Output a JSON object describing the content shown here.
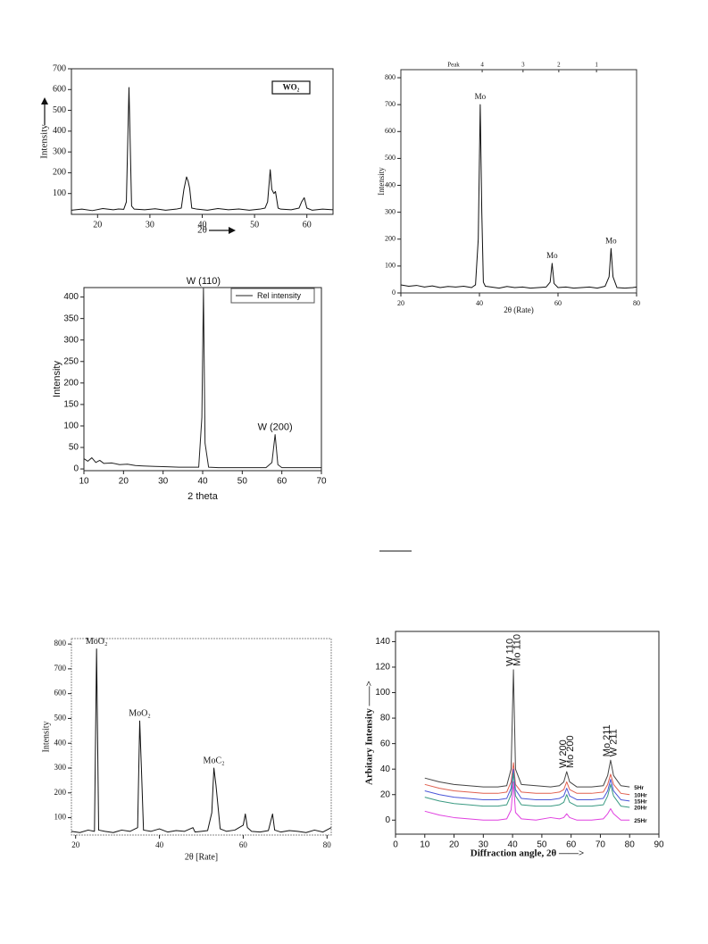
{
  "chart_data": [
    {
      "type": "line",
      "xlabel": "2θ",
      "ylabel": "Intensity",
      "xlim": [
        15,
        65
      ],
      "ylim": [
        0,
        700
      ],
      "xticks": [
        20,
        30,
        40,
        50,
        60
      ],
      "yticks": [
        100,
        200,
        300,
        400,
        500,
        600,
        700
      ],
      "x": [
        15,
        17,
        19,
        21,
        23,
        24,
        25,
        25.5,
        26,
        26.5,
        27,
        29,
        31,
        33,
        35,
        36,
        36.5,
        37,
        37.3,
        37.6,
        38,
        39,
        41,
        43,
        45,
        47,
        49,
        51,
        52,
        52.5,
        53,
        53.3,
        53.7,
        54,
        54.5,
        55,
        57,
        58.5,
        59,
        59.5,
        60,
        61,
        63,
        65
      ],
      "series": [
        {
          "name": "WO₂",
          "color": "#111111",
          "values": [
            20,
            25,
            18,
            28,
            22,
            26,
            24,
            60,
            610,
            40,
            25,
            22,
            27,
            20,
            25,
            30,
            120,
            180,
            160,
            125,
            30,
            25,
            20,
            28,
            22,
            26,
            20,
            25,
            30,
            60,
            215,
            120,
            100,
            110,
            30,
            25,
            22,
            30,
            60,
            80,
            30,
            20,
            25,
            22
          ]
        }
      ]
    },
    {
      "type": "line",
      "xlabel": "2θ (Rate)",
      "ylabel": "Intensity",
      "top_title": "Peak",
      "top_ticks": [
        {
          "value": 40.7,
          "label": "4"
        },
        {
          "value": 51.1,
          "label": "3"
        },
        {
          "value": 60.2,
          "label": "2"
        },
        {
          "value": 69.8,
          "label": "1"
        }
      ],
      "xlim": [
        20,
        80
      ],
      "ylim": [
        0,
        830
      ],
      "xticks": [
        20,
        40,
        60,
        80
      ],
      "yticks": [
        0,
        100,
        200,
        300,
        400,
        500,
        600,
        700,
        800
      ],
      "x": [
        20,
        22,
        24,
        26,
        28,
        30,
        32,
        34,
        36,
        38,
        39,
        39.7,
        40.2,
        40.6,
        41,
        41.5,
        43,
        45,
        47,
        49,
        51,
        53,
        55,
        57,
        58,
        58.5,
        59,
        60,
        62,
        64,
        66,
        68,
        70,
        72,
        73,
        73.5,
        74,
        75,
        77,
        79,
        80
      ],
      "series": [
        {
          "color": "#111111",
          "values": [
            30,
            25,
            28,
            22,
            26,
            20,
            24,
            22,
            25,
            20,
            30,
            200,
            700,
            300,
            40,
            25,
            22,
            18,
            24,
            20,
            22,
            18,
            20,
            22,
            40,
            110,
            35,
            20,
            22,
            18,
            20,
            22,
            18,
            25,
            60,
            165,
            60,
            20,
            18,
            20,
            22
          ]
        }
      ],
      "annotations": [
        {
          "text": "Mo",
          "x": 40.2,
          "y": 700
        },
        {
          "text": "Mo",
          "x": 58.5,
          "y": 110
        },
        {
          "text": "Mo",
          "x": 73.5,
          "y": 165
        }
      ]
    },
    {
      "type": "line",
      "xlabel": "2 theta",
      "ylabel": "Intensity",
      "xlim": [
        10,
        70
      ],
      "ylim": [
        -4,
        422
      ],
      "xticks": [
        10,
        20,
        30,
        40,
        50,
        60,
        70
      ],
      "yticks": [
        0,
        50,
        100,
        150,
        200,
        250,
        300,
        350,
        400
      ],
      "x": [
        10,
        11,
        12,
        13,
        14,
        15,
        17,
        19,
        21,
        23,
        25,
        28,
        31,
        34,
        37,
        39,
        39.8,
        40.2,
        40.6,
        41.5,
        44,
        47,
        50,
        53,
        56,
        57.5,
        58.3,
        59,
        60,
        63,
        66,
        70
      ],
      "series": [
        {
          "name": "Rel intensity",
          "color": "#222222",
          "values": [
            24,
            18,
            26,
            15,
            20,
            13,
            14,
            10,
            11,
            8,
            7,
            6,
            5,
            4,
            4,
            4,
            120,
            420,
            60,
            4,
            3,
            3,
            3,
            3,
            3,
            15,
            80,
            10,
            3,
            3,
            3,
            3
          ]
        }
      ],
      "annotations": [
        {
          "text": "W (110)",
          "x": 40.2,
          "y": 420
        },
        {
          "text": "W (200)",
          "x": 58.3,
          "y": 80
        }
      ]
    },
    {
      "type": "line",
      "xlabel": "2θ [Rate]",
      "ylabel": "Intensity",
      "xlim": [
        19,
        81
      ],
      "ylim": [
        30,
        822
      ],
      "xticks": [
        20,
        40,
        60,
        80
      ],
      "yticks": [
        100,
        200,
        300,
        400,
        500,
        600,
        700,
        800
      ],
      "x": [
        19,
        21,
        23,
        24.5,
        25,
        25.5,
        27,
        29,
        31,
        33,
        34.8,
        35.3,
        35.7,
        36.2,
        38,
        40,
        42,
        44,
        46,
        48,
        48.5,
        50,
        51.5,
        52.5,
        53,
        53.5,
        54.5,
        56,
        58,
        60,
        60.5,
        61,
        62,
        64,
        66,
        67,
        67.5,
        69,
        71,
        73,
        75,
        77,
        79,
        81
      ],
      "series": [
        {
          "color": "#111111",
          "values": [
            45,
            40,
            50,
            45,
            780,
            50,
            45,
            40,
            50,
            45,
            60,
            490,
            300,
            50,
            45,
            55,
            42,
            48,
            45,
            60,
            42,
            45,
            48,
            120,
            300,
            230,
            55,
            45,
            50,
            70,
            115,
            60,
            45,
            42,
            48,
            115,
            50,
            42,
            48,
            45,
            40,
            50,
            42,
            60
          ]
        }
      ],
      "annotations": [
        {
          "text": "MoO₂",
          "x": 25,
          "y": 780
        },
        {
          "text": "MoO₂",
          "x": 35.3,
          "y": 490
        },
        {
          "text": "MoC₂",
          "x": 53,
          "y": 300
        }
      ]
    },
    {
      "type": "line",
      "xlabel": "Diffraction angle,  2θ ——>",
      "ylabel": "Arbitary Intensity ——>",
      "xlim": [
        0,
        90
      ],
      "ylim": [
        -11,
        148
      ],
      "xticks": [
        0,
        10,
        20,
        30,
        40,
        50,
        60,
        70,
        80,
        90
      ],
      "yticks": [
        0,
        20,
        40,
        60,
        80,
        100,
        120,
        140
      ],
      "annotation_rotation": -90,
      "x": [
        10,
        15,
        20,
        25,
        30,
        35,
        38,
        39.5,
        40.3,
        41,
        43,
        48,
        53,
        56,
        57.5,
        58.5,
        59.5,
        62,
        67,
        71,
        72.5,
        73.5,
        74.5,
        77,
        80
      ],
      "series": [
        {
          "name": "5Hr",
          "color": "#444444",
          "values": [
            33,
            30,
            28,
            27,
            26,
            26,
            27,
            40,
            118,
            40,
            28,
            27,
            26,
            27,
            30,
            38,
            30,
            26,
            26,
            27,
            35,
            47,
            35,
            27,
            26
          ]
        },
        {
          "name": "10Hr",
          "color": "#e0604f",
          "values": [
            28,
            25,
            23,
            22,
            21,
            21,
            22,
            30,
            45,
            28,
            22,
            21,
            21,
            22,
            24,
            30,
            24,
            21,
            21,
            22,
            28,
            36,
            28,
            21,
            20
          ]
        },
        {
          "name": "15Hr",
          "color": "#4a55d8",
          "values": [
            23,
            20,
            18,
            17,
            16,
            16,
            17,
            25,
            40,
            24,
            17,
            16,
            16,
            17,
            19,
            25,
            19,
            16,
            16,
            17,
            23,
            32,
            23,
            16,
            15
          ]
        },
        {
          "name": "20Hr",
          "color": "#3a9a82",
          "values": [
            18,
            15,
            13,
            12,
            11,
            11,
            12,
            20,
            37,
            19,
            12,
            11,
            11,
            12,
            14,
            20,
            14,
            11,
            11,
            12,
            19,
            28,
            19,
            11,
            10
          ]
        },
        {
          "name": "25Hr",
          "color": "#e040e0",
          "values": [
            7,
            4,
            2,
            1,
            0,
            0,
            1,
            8,
            30,
            6,
            1,
            0,
            2,
            1,
            2,
            5,
            2,
            0,
            0,
            1,
            5,
            9,
            5,
            0,
            0
          ]
        }
      ],
      "annotations": [
        {
          "text": "W 110",
          "x": 39.2,
          "y": 118
        },
        {
          "text": "Mo 110",
          "x": 41.6,
          "y": 118
        },
        {
          "text": "W 200",
          "x": 57.4,
          "y": 38
        },
        {
          "text": "Mo 200",
          "x": 59.8,
          "y": 38
        },
        {
          "text": "Mo 211",
          "x": 72.3,
          "y": 47
        },
        {
          "text": "W 211",
          "x": 74.7,
          "y": 47
        }
      ]
    }
  ]
}
